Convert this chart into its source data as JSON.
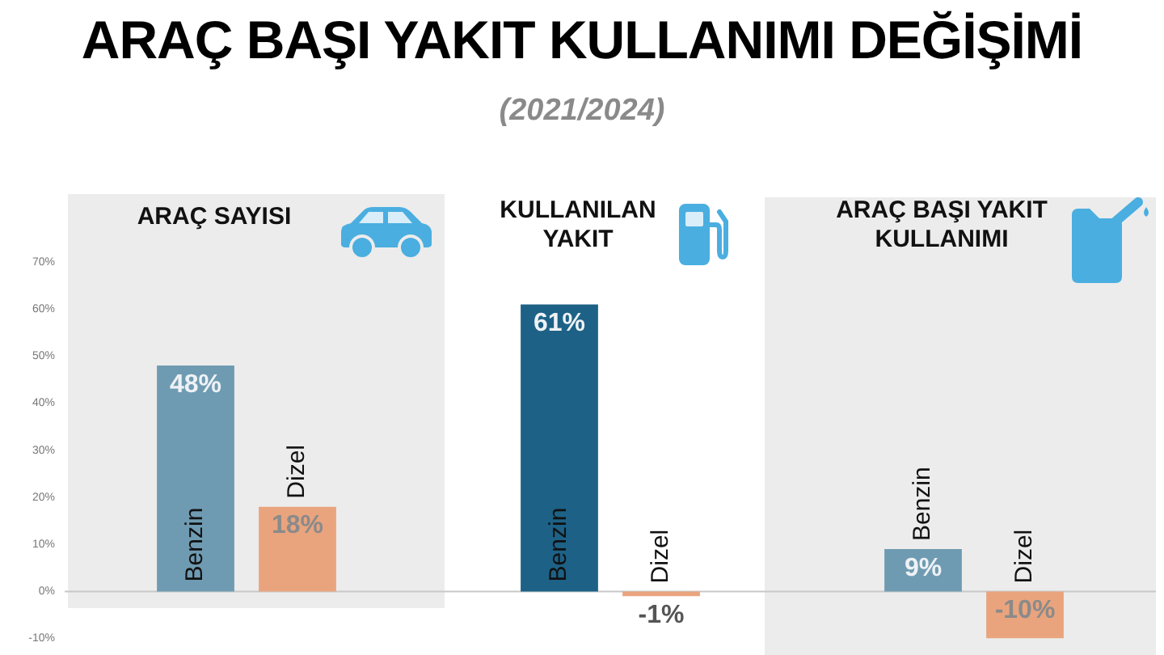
{
  "chart_data": {
    "type": "bar",
    "title": "ARAÇ BAŞI YAKIT KULLANIMI DEĞİŞİMİ",
    "subtitle": "(2021/2024)",
    "categories": [
      "ARAÇ SAYISI",
      "KULLANILAN YAKIT",
      "ARAÇ BAŞI YAKIT KULLANIMI"
    ],
    "series": [
      {
        "name": "Benzin",
        "colors": [
          "#6f9bb2",
          "#1d6186",
          "#6f9bb2"
        ],
        "values": [
          48,
          61,
          9
        ],
        "value_labels": [
          "48%",
          "61%",
          "9%"
        ]
      },
      {
        "name": "Dizel",
        "color": "#e9a47e",
        "values": [
          18,
          -1,
          -10
        ],
        "value_labels": [
          "18%",
          "-1%",
          "-10%"
        ]
      }
    ],
    "ylim": [
      -10,
      70
    ],
    "yticks": [
      {
        "value": -10,
        "label": "-10%"
      },
      {
        "value": 0,
        "label": "0%"
      },
      {
        "value": 10,
        "label": "10%"
      },
      {
        "value": 20,
        "label": "20%"
      },
      {
        "value": 30,
        "label": "30%"
      },
      {
        "value": 40,
        "label": "40%"
      },
      {
        "value": 50,
        "label": "50%"
      },
      {
        "value": 60,
        "label": "60%"
      },
      {
        "value": 70,
        "label": "70%"
      }
    ],
    "ref_lines": [
      {
        "axis": "y",
        "value": 0,
        "color": "#c8c8c8"
      }
    ]
  }
}
